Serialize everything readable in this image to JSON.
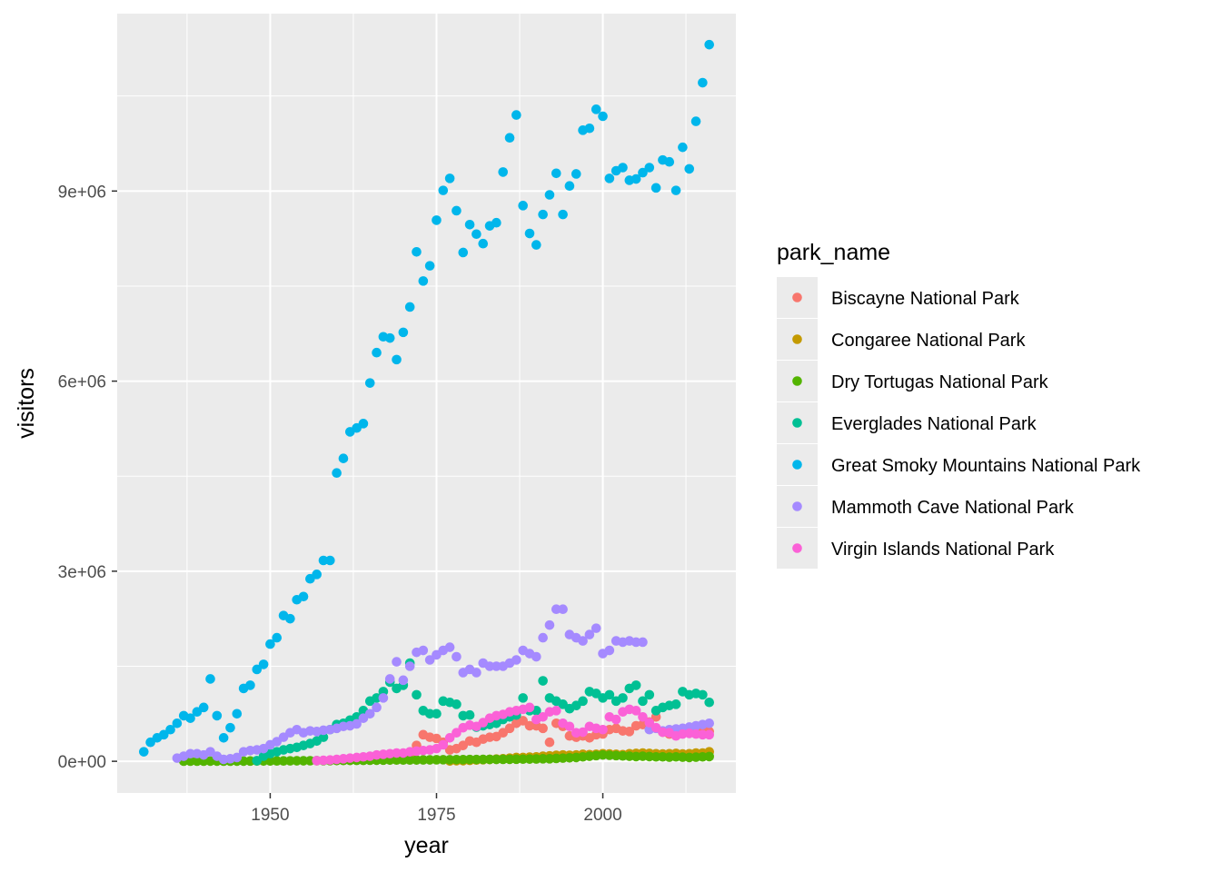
{
  "chart_data": {
    "type": "scatter",
    "title": "",
    "xlabel": "year",
    "ylabel": "visitors",
    "xlim": [
      1927,
      2020
    ],
    "ylim": [
      -500000,
      11800000
    ],
    "xticks": [
      1950,
      1975,
      2000
    ],
    "xtick_labels": [
      "1950",
      "1975",
      "2000"
    ],
    "yticks": [
      0,
      3000000,
      6000000,
      9000000
    ],
    "ytick_labels": [
      "0e+00",
      "3e+06",
      "6e+06",
      "9e+06"
    ],
    "grid": true,
    "legend": {
      "title": "park_name",
      "placement": "right"
    },
    "series": [
      {
        "name": "Biscayne National Park",
        "color": "#F8766D",
        "x": [
          1971,
          1972,
          1973,
          1974,
          1975,
          1976,
          1977,
          1978,
          1979,
          1980,
          1981,
          1982,
          1983,
          1984,
          1985,
          1986,
          1987,
          1988,
          1989,
          1990,
          1991,
          1992,
          1993,
          1994,
          1995,
          1996,
          1997,
          1998,
          1999,
          2000,
          2001,
          2002,
          2003,
          2004,
          2005,
          2006,
          2007,
          2008,
          2009,
          2010,
          2011,
          2012,
          2013,
          2014,
          2015,
          2016
        ],
        "y": [
          60000,
          250000,
          420000,
          380000,
          360000,
          300000,
          180000,
          200000,
          250000,
          320000,
          300000,
          350000,
          380000,
          390000,
          450000,
          520000,
          600000,
          640000,
          560000,
          560000,
          520000,
          300000,
          600000,
          550000,
          400000,
          380000,
          400000,
          370000,
          420000,
          430000,
          500000,
          520000,
          480000,
          470000,
          560000,
          580000,
          620000,
          700000,
          460000,
          430000,
          470000,
          470000,
          490000,
          480000,
          500000,
          470000
        ]
      },
      {
        "name": "Congaree National Park",
        "color": "#C49A00",
        "x": [
          1977,
          1978,
          1979,
          1980,
          1981,
          1982,
          1983,
          1984,
          1985,
          1986,
          1987,
          1988,
          1989,
          1990,
          1991,
          1992,
          1993,
          1994,
          1995,
          1996,
          1997,
          1998,
          1999,
          2000,
          2001,
          2002,
          2003,
          2004,
          2005,
          2006,
          2007,
          2008,
          2009,
          2010,
          2011,
          2012,
          2013,
          2014,
          2015,
          2016
        ],
        "y": [
          5000,
          10000,
          10000,
          15000,
          20000,
          25000,
          30000,
          35000,
          40000,
          50000,
          60000,
          60000,
          65000,
          70000,
          80000,
          85000,
          95000,
          100000,
          95000,
          100000,
          110000,
          105000,
          110000,
          120000,
          115000,
          110000,
          105000,
          120000,
          125000,
          130000,
          125000,
          120000,
          115000,
          120000,
          125000,
          115000,
          120000,
          130000,
          130000,
          150000
        ]
      },
      {
        "name": "Dry Tortugas National Park",
        "color": "#53B400",
        "x": [
          1937,
          1938,
          1939,
          1940,
          1941,
          1942,
          1943,
          1944,
          1945,
          1946,
          1947,
          1948,
          1949,
          1950,
          1951,
          1952,
          1953,
          1954,
          1955,
          1956,
          1957,
          1958,
          1959,
          1960,
          1961,
          1962,
          1963,
          1964,
          1965,
          1966,
          1967,
          1968,
          1969,
          1970,
          1971,
          1972,
          1973,
          1974,
          1975,
          1976,
          1977,
          1978,
          1979,
          1980,
          1981,
          1982,
          1983,
          1984,
          1985,
          1986,
          1987,
          1988,
          1989,
          1990,
          1991,
          1992,
          1993,
          1994,
          1995,
          1996,
          1997,
          1998,
          1999,
          2000,
          2001,
          2002,
          2003,
          2004,
          2005,
          2006,
          2007,
          2008,
          2009,
          2010,
          2011,
          2012,
          2013,
          2014,
          2015,
          2016
        ],
        "y": [
          2000,
          2000,
          2000,
          2000,
          3000,
          3000,
          2000,
          2000,
          3000,
          3000,
          4000,
          5000,
          5000,
          5000,
          6000,
          6000,
          7000,
          8000,
          8000,
          9000,
          10000,
          10000,
          11000,
          12000,
          13000,
          14000,
          15000,
          15000,
          16000,
          17000,
          18000,
          19000,
          20000,
          20000,
          20000,
          21000,
          22000,
          23000,
          24000,
          25000,
          25000,
          26000,
          27000,
          28000,
          28000,
          29000,
          30000,
          30000,
          31000,
          32000,
          33000,
          34000,
          35000,
          36000,
          40000,
          40000,
          45000,
          50000,
          55000,
          60000,
          70000,
          80000,
          90000,
          100000,
          95000,
          90000,
          85000,
          80000,
          75000,
          80000,
          75000,
          70000,
          70000,
          65000,
          70000,
          65000,
          60000,
          65000,
          70000,
          75000
        ]
      },
      {
        "name": "Everglades National Park",
        "color": "#00C094",
        "x": [
          1948,
          1949,
          1950,
          1951,
          1952,
          1953,
          1954,
          1955,
          1956,
          1957,
          1958,
          1959,
          1960,
          1961,
          1962,
          1963,
          1964,
          1965,
          1966,
          1967,
          1968,
          1969,
          1970,
          1971,
          1972,
          1973,
          1974,
          1975,
          1976,
          1977,
          1978,
          1979,
          1980,
          1981,
          1982,
          1983,
          1984,
          1985,
          1986,
          1987,
          1988,
          1989,
          1990,
          1991,
          1992,
          1993,
          1994,
          1995,
          1996,
          1997,
          1998,
          1999,
          2000,
          2001,
          2002,
          2003,
          2004,
          2005,
          2006,
          2007,
          2008,
          2009,
          2010,
          2011,
          2012,
          2013,
          2014,
          2015,
          2016
        ],
        "y": [
          10000,
          80000,
          120000,
          150000,
          180000,
          200000,
          220000,
          250000,
          280000,
          320000,
          380000,
          500000,
          580000,
          600000,
          650000,
          700000,
          800000,
          950000,
          1000000,
          1100000,
          1250000,
          1150000,
          1200000,
          1550000,
          1050000,
          800000,
          750000,
          750000,
          950000,
          930000,
          900000,
          720000,
          730000,
          540000,
          560000,
          580000,
          600000,
          660000,
          700000,
          730000,
          1000000,
          800000,
          800000,
          1270000,
          1000000,
          950000,
          900000,
          830000,
          880000,
          950000,
          1100000,
          1070000,
          1000000,
          1050000,
          950000,
          1000000,
          1150000,
          1200000,
          950000,
          1050000,
          800000,
          850000,
          880000,
          900000,
          1100000,
          1050000,
          1070000,
          1050000,
          930000
        ]
      },
      {
        "name": "Great Smoky Mountains National Park",
        "color": "#00B6EB",
        "x": [
          1931,
          1932,
          1933,
          1934,
          1935,
          1936,
          1937,
          1938,
          1939,
          1940,
          1941,
          1942,
          1943,
          1944,
          1945,
          1946,
          1947,
          1948,
          1949,
          1950,
          1951,
          1952,
          1953,
          1954,
          1955,
          1956,
          1957,
          1958,
          1959,
          1960,
          1961,
          1962,
          1963,
          1964,
          1965,
          1966,
          1967,
          1968,
          1969,
          1970,
          1971,
          1972,
          1973,
          1974,
          1975,
          1976,
          1977,
          1978,
          1979,
          1980,
          1981,
          1982,
          1983,
          1984,
          1985,
          1986,
          1987,
          1988,
          1989,
          1990,
          1991,
          1992,
          1993,
          1994,
          1995,
          1996,
          1997,
          1998,
          1999,
          2000,
          2001,
          2002,
          2003,
          2004,
          2005,
          2006,
          2007,
          2008,
          2009,
          2010,
          2011,
          2012,
          2013,
          2014,
          2015,
          2016
        ],
        "y": [
          150000,
          300000,
          370000,
          420000,
          500000,
          600000,
          720000,
          680000,
          780000,
          850000,
          1300000,
          720000,
          370000,
          530000,
          750000,
          1150000,
          1200000,
          1450000,
          1530000,
          1850000,
          1950000,
          2300000,
          2250000,
          2550000,
          2600000,
          2880000,
          2950000,
          3170000,
          3170000,
          4550000,
          4780000,
          5200000,
          5260000,
          5330000,
          5970000,
          6450000,
          6700000,
          6680000,
          6340000,
          6770000,
          7170000,
          8040000,
          7580000,
          7820000,
          8540000,
          9010000,
          9200000,
          8690000,
          8030000,
          8470000,
          8320000,
          8170000,
          8450000,
          8500000,
          9300000,
          9840000,
          10200000,
          8770000,
          8330000,
          8150000,
          8630000,
          8940000,
          9280000,
          8630000,
          9080000,
          9270000,
          9960000,
          9990000,
          10290000,
          10180000,
          9200000,
          9320000,
          9370000,
          9170000,
          9190000,
          9290000,
          9370000,
          9050000,
          9490000,
          9460000,
          9010000,
          9690000,
          9350000,
          10100000,
          10710000,
          11310000
        ]
      },
      {
        "name": "Mammoth Cave National Park",
        "color": "#A58AFF",
        "x": [
          1936,
          1937,
          1938,
          1939,
          1940,
          1941,
          1942,
          1943,
          1944,
          1945,
          1946,
          1947,
          1948,
          1949,
          1950,
          1951,
          1952,
          1953,
          1954,
          1955,
          1956,
          1957,
          1958,
          1959,
          1960,
          1961,
          1962,
          1963,
          1964,
          1965,
          1966,
          1967,
          1968,
          1969,
          1970,
          1971,
          1972,
          1973,
          1974,
          1975,
          1976,
          1977,
          1978,
          1979,
          1980,
          1981,
          1982,
          1983,
          1984,
          1985,
          1986,
          1987,
          1988,
          1989,
          1990,
          1991,
          1992,
          1993,
          1994,
          1995,
          1996,
          1997,
          1998,
          1999,
          2000,
          2001,
          2002,
          2003,
          2004,
          2005,
          2006,
          2007,
          2008,
          2009,
          2010,
          2011,
          2012,
          2013,
          2014,
          2015,
          2016
        ],
        "y": [
          50000,
          80000,
          120000,
          120000,
          100000,
          150000,
          80000,
          30000,
          40000,
          60000,
          150000,
          170000,
          180000,
          200000,
          260000,
          310000,
          380000,
          450000,
          500000,
          450000,
          480000,
          470000,
          490000,
          500000,
          520000,
          550000,
          560000,
          590000,
          680000,
          750000,
          850000,
          1000000,
          1300000,
          1570000,
          1280000,
          1500000,
          1720000,
          1750000,
          1600000,
          1680000,
          1750000,
          1800000,
          1650000,
          1400000,
          1450000,
          1400000,
          1550000,
          1500000,
          1500000,
          1500000,
          1550000,
          1600000,
          1750000,
          1700000,
          1650000,
          1950000,
          2150000,
          2400000,
          2400000,
          2000000,
          1950000,
          1900000,
          2000000,
          2100000,
          1700000,
          1750000,
          1900000,
          1880000,
          1900000,
          1880000,
          1880000,
          500000,
          520000,
          480000,
          500000,
          510000,
          520000,
          540000,
          560000,
          580000,
          600000
        ]
      },
      {
        "name": "Virgin Islands National Park",
        "color": "#FB61D7",
        "x": [
          1957,
          1958,
          1959,
          1960,
          1961,
          1962,
          1963,
          1964,
          1965,
          1966,
          1967,
          1968,
          1969,
          1970,
          1971,
          1972,
          1973,
          1974,
          1975,
          1976,
          1977,
          1978,
          1979,
          1980,
          1981,
          1982,
          1983,
          1984,
          1985,
          1986,
          1987,
          1988,
          1989,
          1990,
          1991,
          1992,
          1993,
          1994,
          1995,
          1996,
          1997,
          1998,
          1999,
          2000,
          2001,
          2002,
          2003,
          2004,
          2005,
          2006,
          2007,
          2008,
          2009,
          2010,
          2011,
          2012,
          2013,
          2014,
          2015,
          2016
        ],
        "y": [
          10000,
          15000,
          20000,
          30000,
          40000,
          50000,
          60000,
          70000,
          80000,
          100000,
          110000,
          120000,
          130000,
          130000,
          150000,
          160000,
          170000,
          180000,
          200000,
          260000,
          370000,
          450000,
          530000,
          570000,
          550000,
          610000,
          680000,
          720000,
          740000,
          780000,
          800000,
          820000,
          850000,
          660000,
          700000,
          780000,
          800000,
          600000,
          550000,
          450000,
          460000,
          550000,
          520000,
          500000,
          700000,
          660000,
          780000,
          820000,
          800000,
          700000,
          610000,
          530000,
          460000,
          450000,
          400000,
          430000,
          440000,
          430000,
          420000,
          420000
        ]
      }
    ]
  }
}
